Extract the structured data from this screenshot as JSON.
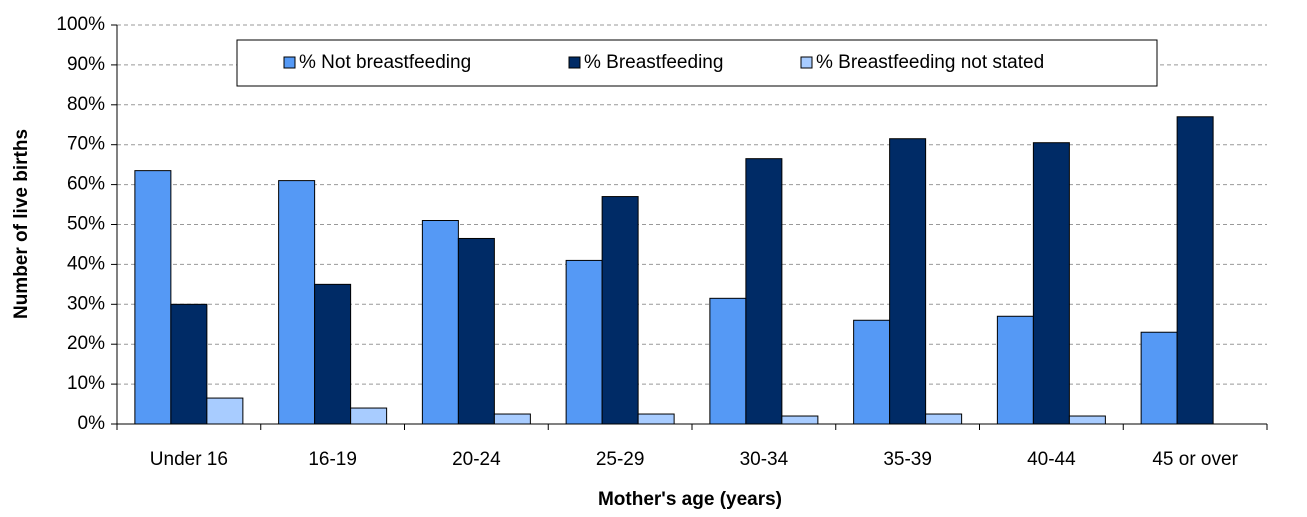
{
  "chart_data": {
    "type": "bar",
    "x_label": "Mother's age (years)",
    "y_label": "Number of live births",
    "categories": [
      "Under 16",
      "16-19",
      "20-24",
      "25-29",
      "30-34",
      "35-39",
      "40-44",
      "45 or over"
    ],
    "series": [
      {
        "name": "% Not breastfeeding",
        "color": "#5599f5",
        "values": [
          63.5,
          61,
          51,
          41,
          31.5,
          26,
          27,
          23
        ]
      },
      {
        "name": "% Breastfeeding",
        "color": "#002b66",
        "values": [
          30,
          35,
          46.5,
          57,
          66.5,
          71.5,
          70.5,
          77
        ]
      },
      {
        "name": "% Breastfeeding not stated",
        "color": "#a8ccff",
        "values": [
          6.5,
          4,
          2.5,
          2.5,
          2,
          2.5,
          2,
          null
        ]
      }
    ],
    "ylim": [
      0,
      100
    ],
    "yticks": [
      {
        "value": 0,
        "label": "0%"
      },
      {
        "value": 10,
        "label": "10%"
      },
      {
        "value": 20,
        "label": "20%"
      },
      {
        "value": 30,
        "label": "30%"
      },
      {
        "value": 40,
        "label": "40%"
      },
      {
        "value": 50,
        "label": "50%"
      },
      {
        "value": 60,
        "label": "60%"
      },
      {
        "value": 70,
        "label": "70%"
      },
      {
        "value": 80,
        "label": "80%"
      },
      {
        "value": 90,
        "label": "90%"
      },
      {
        "value": 100,
        "label": "100%"
      }
    ],
    "grid": true,
    "legend": "upper center"
  }
}
